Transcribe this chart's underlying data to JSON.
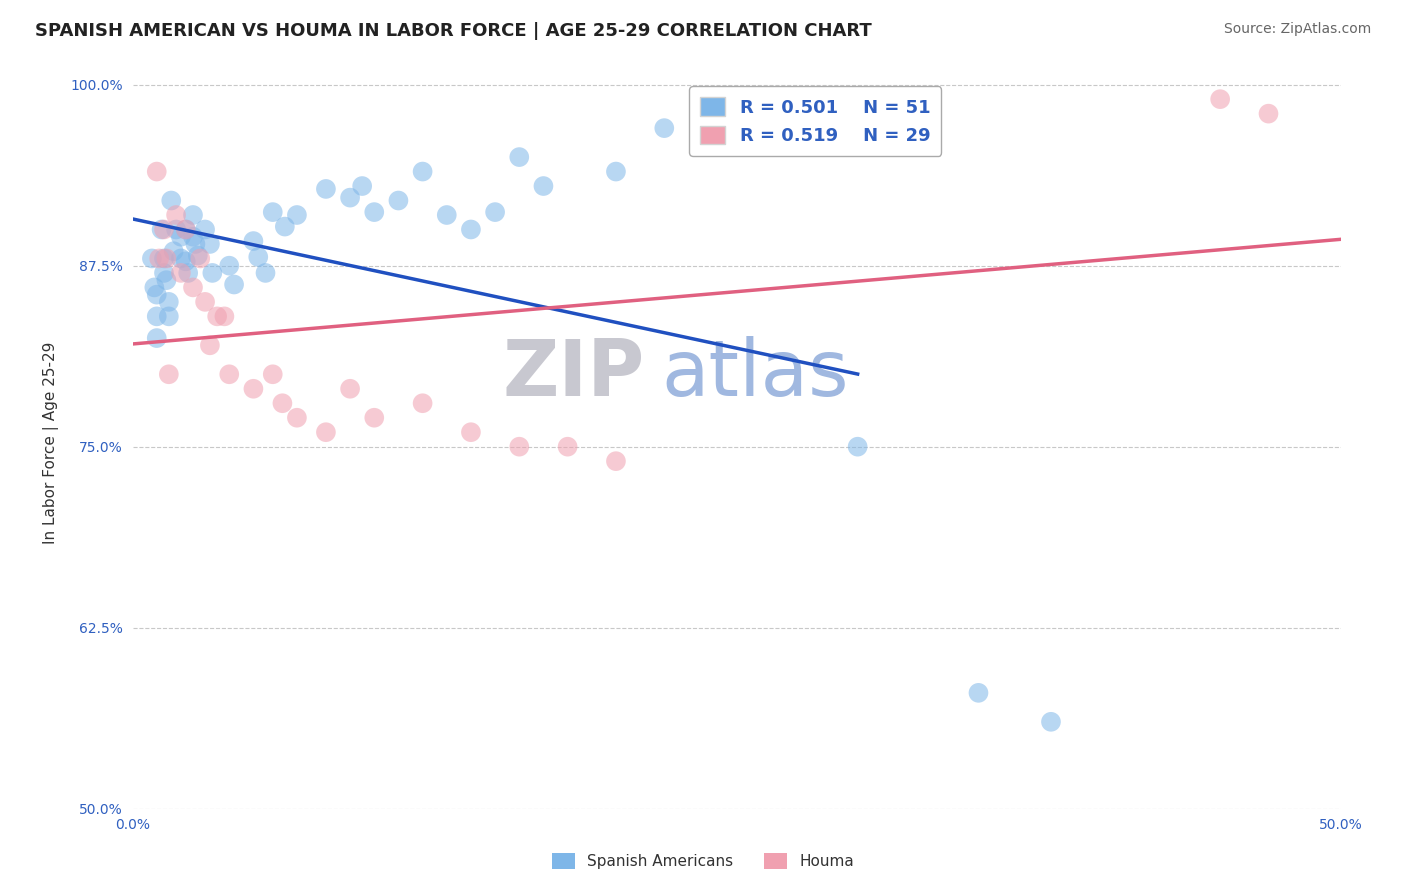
{
  "title": "SPANISH AMERICAN VS HOUMA IN LABOR FORCE | AGE 25-29 CORRELATION CHART",
  "source": "Source: ZipAtlas.com",
  "ylabel": "In Labor Force | Age 25-29",
  "xlim": [
    0.0,
    0.5
  ],
  "ylim": [
    0.5,
    1.005
  ],
  "xticks": [
    0.0,
    0.1,
    0.2,
    0.3,
    0.4,
    0.5
  ],
  "xticklabels": [
    "0.0%",
    "",
    "",
    "",
    "",
    "50.0%"
  ],
  "yticks": [
    0.5,
    0.625,
    0.75,
    0.875,
    1.0
  ],
  "yticklabels": [
    "50.0%",
    "62.5%",
    "75.0%",
    "87.5%",
    "100.0%"
  ],
  "r_blue": 0.501,
  "n_blue": 51,
  "r_pink": 0.519,
  "n_pink": 29,
  "blue_color": "#7EB6E8",
  "pink_color": "#F0A0B0",
  "blue_line_color": "#2050C0",
  "pink_line_color": "#E06080",
  "grid_color": "#C8C8C8",
  "tick_color": "#3060C0",
  "watermark_zip_color": "#C8C8D0",
  "watermark_atlas_color": "#A0B8E0",
  "spanish_americans_x": [
    0.008,
    0.009,
    0.01,
    0.01,
    0.01,
    0.012,
    0.013,
    0.013,
    0.014,
    0.015,
    0.015,
    0.016,
    0.017,
    0.018,
    0.02,
    0.02,
    0.022,
    0.022,
    0.023,
    0.025,
    0.025,
    0.026,
    0.027,
    0.03,
    0.032,
    0.033,
    0.04,
    0.042,
    0.05,
    0.052,
    0.055,
    0.058,
    0.063,
    0.068,
    0.08,
    0.09,
    0.095,
    0.1,
    0.11,
    0.12,
    0.13,
    0.14,
    0.15,
    0.16,
    0.17,
    0.2,
    0.22,
    0.25,
    0.3,
    0.35,
    0.38
  ],
  "spanish_americans_y": [
    0.88,
    0.86,
    0.855,
    0.84,
    0.825,
    0.9,
    0.88,
    0.87,
    0.865,
    0.85,
    0.84,
    0.92,
    0.885,
    0.9,
    0.895,
    0.88,
    0.9,
    0.878,
    0.87,
    0.91,
    0.895,
    0.89,
    0.882,
    0.9,
    0.89,
    0.87,
    0.875,
    0.862,
    0.892,
    0.881,
    0.87,
    0.912,
    0.902,
    0.91,
    0.928,
    0.922,
    0.93,
    0.912,
    0.92,
    0.94,
    0.91,
    0.9,
    0.912,
    0.95,
    0.93,
    0.94,
    0.97,
    0.97,
    0.75,
    0.58,
    0.56
  ],
  "houma_x": [
    0.01,
    0.011,
    0.013,
    0.014,
    0.015,
    0.018,
    0.02,
    0.022,
    0.025,
    0.028,
    0.03,
    0.032,
    0.035,
    0.038,
    0.04,
    0.05,
    0.058,
    0.062,
    0.068,
    0.08,
    0.09,
    0.1,
    0.12,
    0.14,
    0.16,
    0.18,
    0.2,
    0.45,
    0.47
  ],
  "houma_y": [
    0.94,
    0.88,
    0.9,
    0.88,
    0.8,
    0.91,
    0.87,
    0.9,
    0.86,
    0.88,
    0.85,
    0.82,
    0.84,
    0.84,
    0.8,
    0.79,
    0.8,
    0.78,
    0.77,
    0.76,
    0.79,
    0.77,
    0.78,
    0.76,
    0.75,
    0.75,
    0.74,
    0.99,
    0.98
  ]
}
